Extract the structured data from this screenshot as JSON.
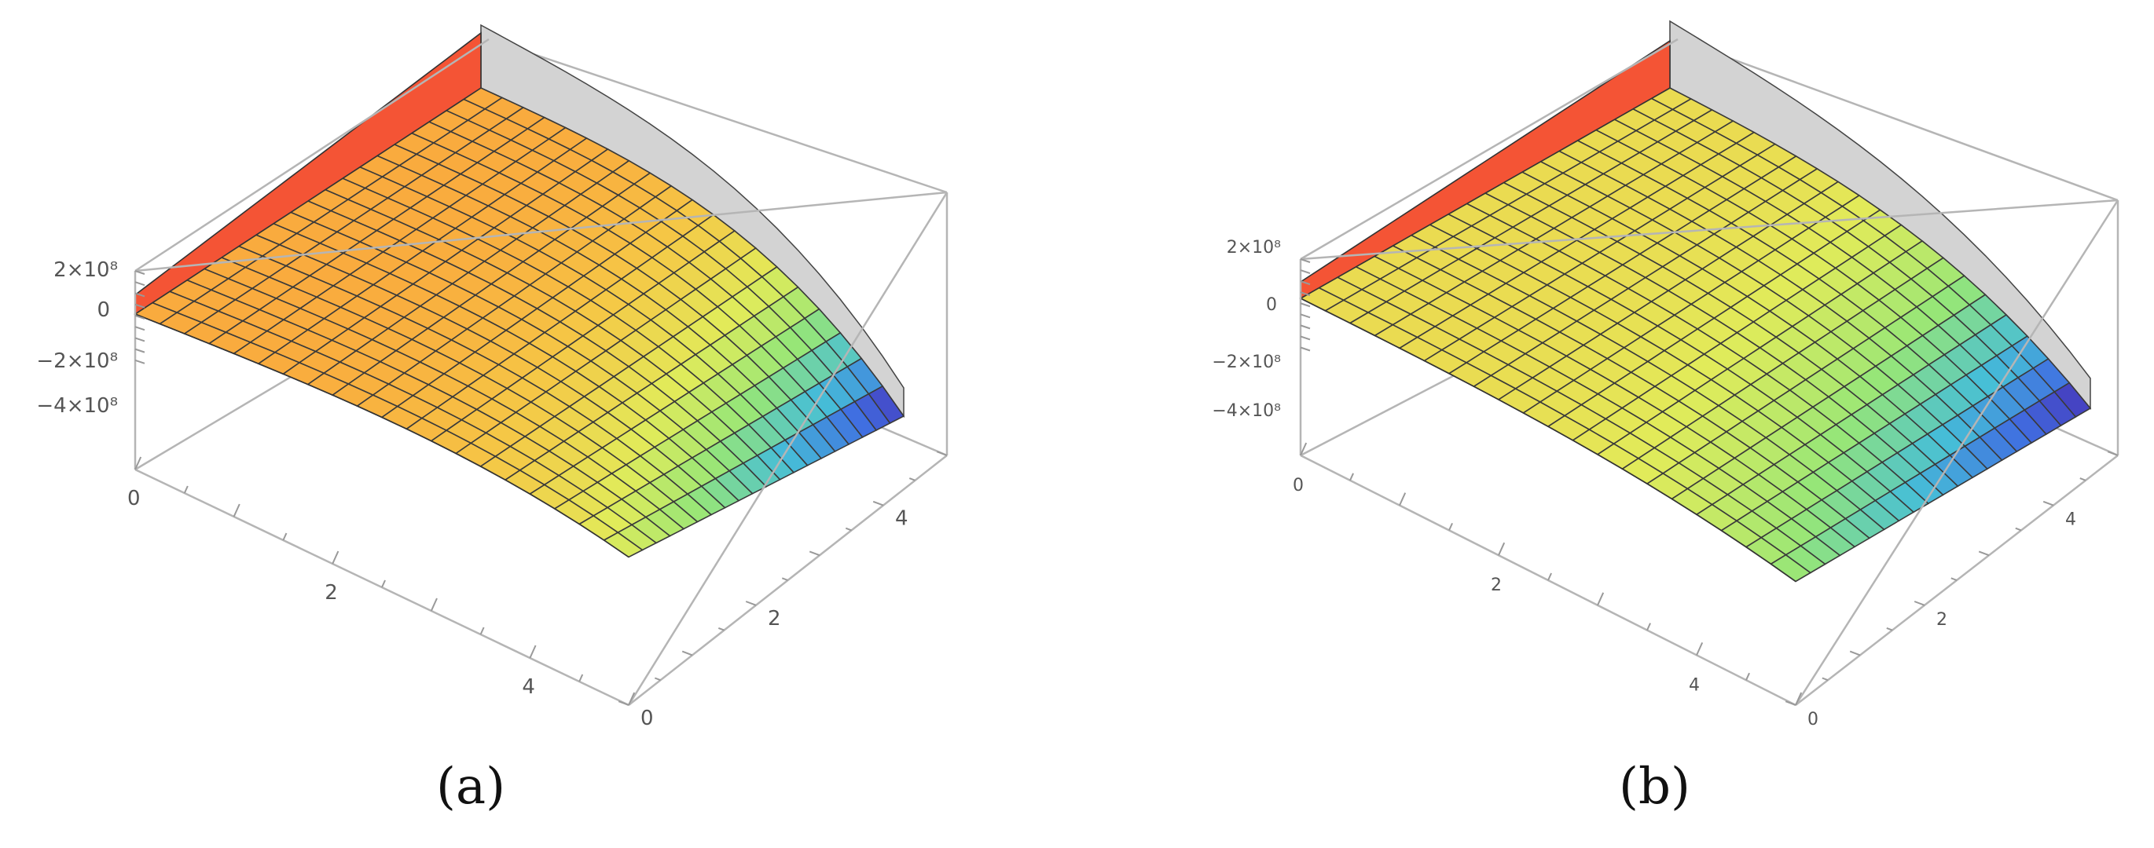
{
  "captions": [
    "(a)",
    "(b)"
  ],
  "chart_data": [
    {
      "type": "surface3d",
      "panel": "a",
      "x_ticks": [
        "0",
        "2",
        "4"
      ],
      "y_ticks": [
        "0",
        "2",
        "4"
      ],
      "z_ticks": [
        "2×10⁸",
        "0",
        "−2×10⁸",
        "−4×10⁸"
      ],
      "x_range": [
        0,
        5
      ],
      "y_range": [
        0,
        5
      ],
      "z_range": [
        -500000000,
        300000000
      ],
      "grid": true,
      "colormap": "rainbow (blue low → yellow/orange → red high)"
    },
    {
      "type": "surface3d",
      "panel": "b",
      "x_ticks": [
        "0",
        "2",
        "4"
      ],
      "y_ticks": [
        "0",
        "2",
        "4"
      ],
      "z_ticks": [
        "2×10⁸",
        "0",
        "−2×10⁸",
        "−4×10⁸"
      ],
      "x_range": [
        0,
        5
      ],
      "y_range": [
        0,
        5
      ],
      "z_range": [
        -500000000,
        300000000
      ],
      "grid": true,
      "colormap": "rainbow (blue low → yellow → red high)"
    }
  ]
}
